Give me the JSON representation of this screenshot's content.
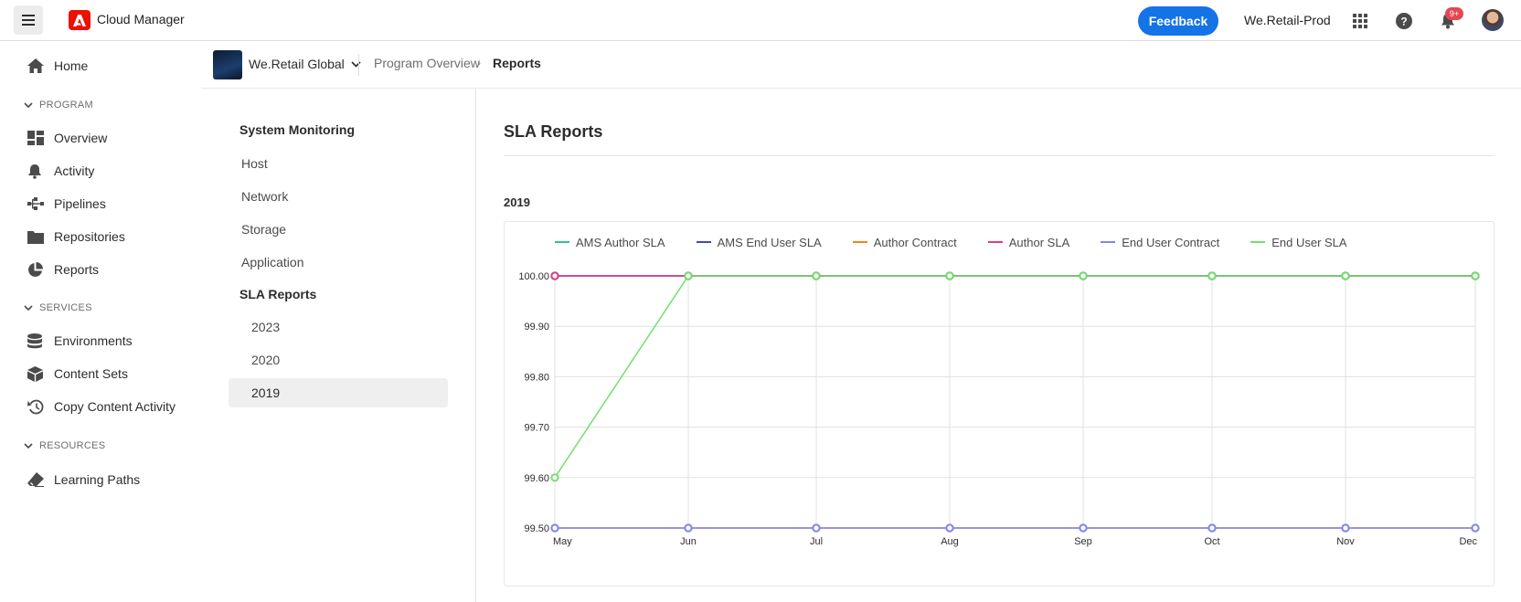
{
  "topbar": {
    "app_title": "Cloud Manager",
    "feedback_label": "Feedback",
    "org_name": "We.Retail-Prod",
    "notification_count": "9+",
    "icons": [
      "menu-icon",
      "adobe-logo",
      "apps-grid-icon",
      "help-icon",
      "bell-icon",
      "user-avatar"
    ]
  },
  "sidebar": {
    "home": "Home",
    "sections": [
      {
        "label": "PROGRAM",
        "items": [
          "Overview",
          "Activity",
          "Pipelines",
          "Repositories",
          "Reports"
        ]
      },
      {
        "label": "SERVICES",
        "items": [
          "Environments",
          "Content Sets",
          "Copy Content Activity"
        ]
      },
      {
        "label": "RESOURCES",
        "items": [
          "Learning Paths"
        ]
      }
    ]
  },
  "header": {
    "program_name": "We.Retail Global",
    "breadcrumb": [
      "Program Overview",
      "Reports"
    ]
  },
  "reports_nav": {
    "group1_title": "System Monitoring",
    "group1_items": [
      "Host",
      "Network",
      "Storage",
      "Application"
    ],
    "group2_title": "SLA Reports",
    "group2_items": [
      "2023",
      "2020",
      "2019"
    ],
    "selected": "2019"
  },
  "main": {
    "title": "SLA Reports",
    "year": "2019"
  },
  "chart_data": {
    "type": "line",
    "x": [
      "May",
      "Jun",
      "Jul",
      "Aug",
      "Sep",
      "Oct",
      "Nov",
      "Dec"
    ],
    "ylim": [
      99.5,
      100.0
    ],
    "yticks": [
      "100.00",
      "99.90",
      "99.80",
      "99.70",
      "99.60",
      "99.50"
    ],
    "grid": true,
    "legend_position": "top",
    "series": [
      {
        "name": "AMS Author SLA",
        "color": "#2fc48d",
        "values": [
          100.0,
          100.0,
          100.0,
          100.0,
          100.0,
          100.0,
          100.0,
          100.0
        ]
      },
      {
        "name": "AMS End User SLA",
        "color": "#4046ca",
        "values": [
          100.0,
          100.0,
          100.0,
          100.0,
          100.0,
          100.0,
          100.0,
          100.0
        ]
      },
      {
        "name": "Author Contract",
        "color": "#f68511",
        "values": [
          99.5,
          99.5,
          99.5,
          99.5,
          99.5,
          99.5,
          99.5,
          99.5
        ]
      },
      {
        "name": "Author SLA",
        "color": "#de3d82",
        "values": [
          100.0,
          100.0,
          100.0,
          100.0,
          100.0,
          100.0,
          100.0,
          100.0
        ]
      },
      {
        "name": "End User Contract",
        "color": "#7e84fa",
        "values": [
          99.5,
          99.5,
          99.5,
          99.5,
          99.5,
          99.5,
          99.5,
          99.5
        ]
      },
      {
        "name": "End User SLA",
        "color": "#72e06a",
        "values": [
          99.6,
          100.0,
          100.0,
          100.0,
          100.0,
          100.0,
          100.0,
          100.0
        ]
      }
    ]
  }
}
